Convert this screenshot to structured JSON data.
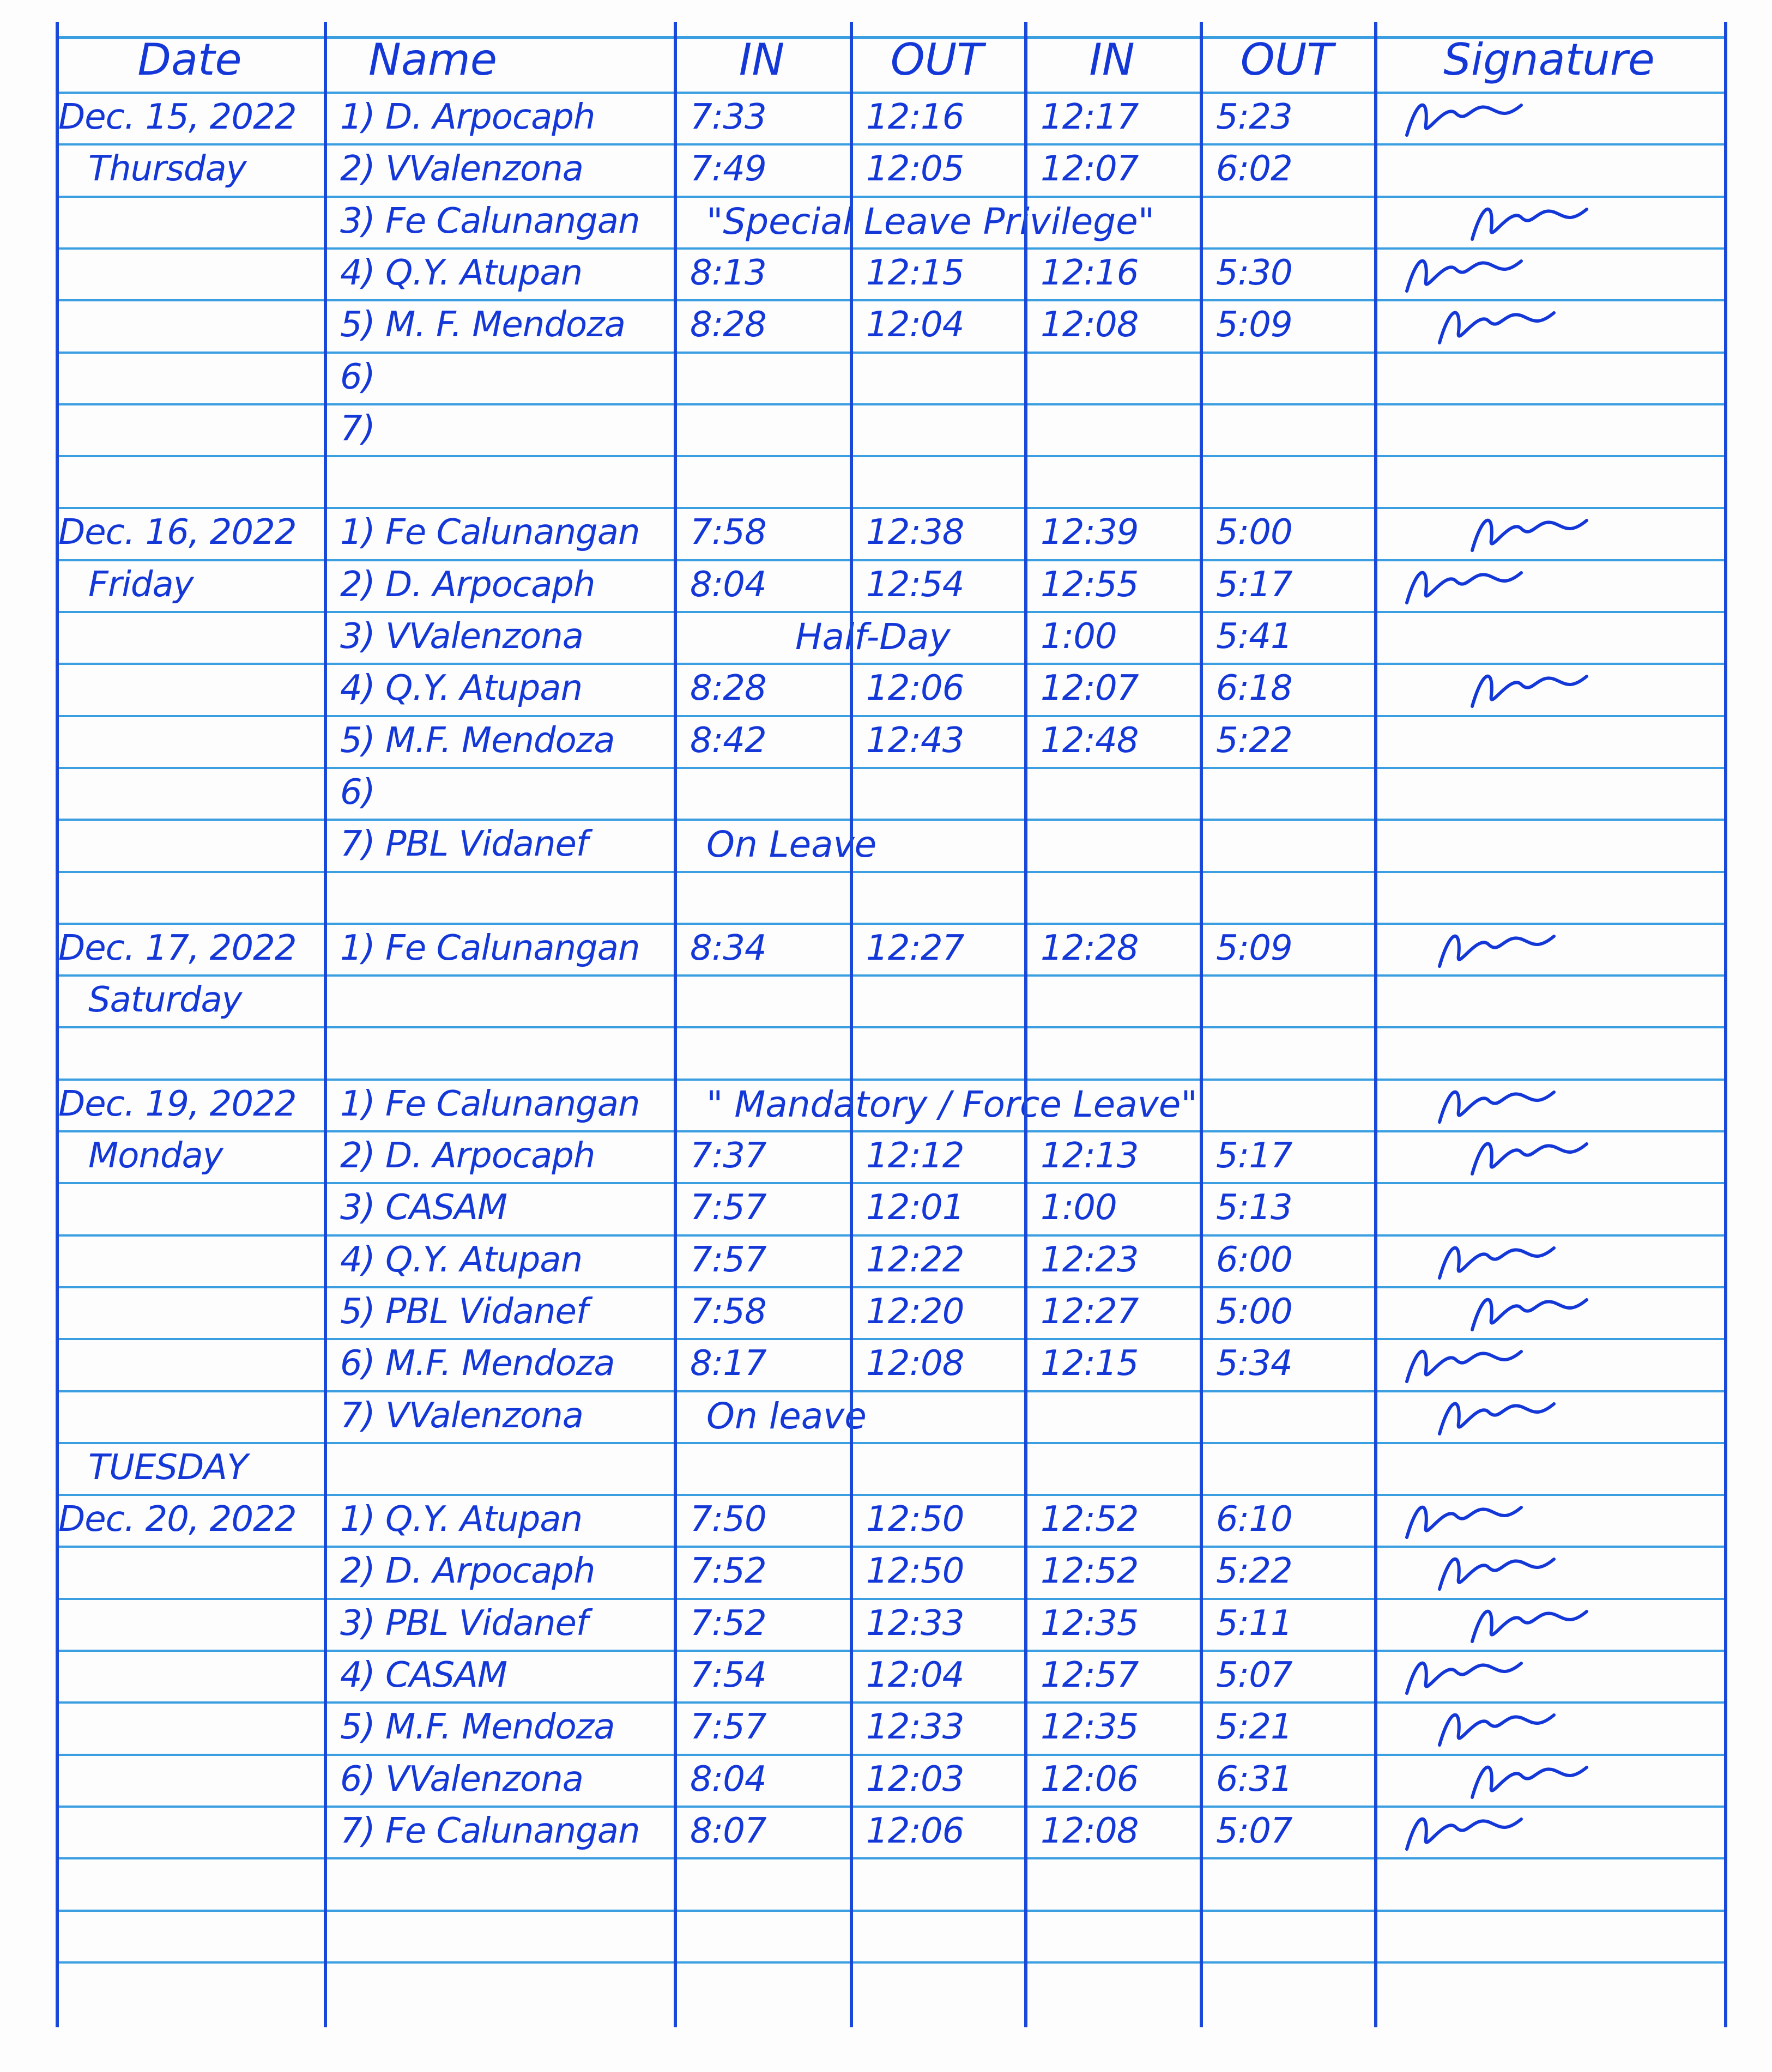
{
  "colors": {
    "ink": "#1438d8",
    "rule": "#3a9ee0"
  },
  "header": {
    "date": "Date",
    "name": "Name",
    "in1": "IN",
    "out1": "OUT",
    "in2": "IN",
    "out2": "OUT",
    "signature": "Signature"
  },
  "rows": [
    {
      "date": "Dec. 15, 2022",
      "name": "1) D. Arpocaph",
      "in1": "7:33",
      "out1": "12:16",
      "in2": "12:17",
      "out2": "5:23",
      "signed": true
    },
    {
      "date": "Thursday",
      "name": "2) VValenzona",
      "in1": "7:49",
      "out1": "12:05",
      "in2": "12:07",
      "out2": "6:02"
    },
    {
      "name": "3) Fe Calunangan",
      "remark": "\"Special Leave Privilege\"",
      "signed": true
    },
    {
      "name": "4) Q.Y. Atupan",
      "in1": "8:13",
      "out1": "12:15",
      "in2": "12:16",
      "out2": "5:30",
      "signed": true
    },
    {
      "name": "5) M. F. Mendoza",
      "in1": "8:28",
      "out1": "12:04",
      "in2": "12:08",
      "out2": "5:09",
      "signed": true
    },
    {
      "name": "6)"
    },
    {
      "name": "7)"
    },
    {},
    {
      "date": "Dec. 16, 2022",
      "name": "1) Fe Calunangan",
      "in1": "7:58",
      "out1": "12:38",
      "in2": "12:39",
      "out2": "5:00",
      "signed": true
    },
    {
      "date": "Friday",
      "name": "2) D. Arpocaph",
      "in1": "8:04",
      "out1": "12:54",
      "in2": "12:55",
      "out2": "5:17",
      "signed": true
    },
    {
      "name": "3) VValenzona",
      "remark": "Half-Day",
      "in2": "1:00",
      "out2": "5:41"
    },
    {
      "name": "4) Q.Y. Atupan",
      "in1": "8:28",
      "out1": "12:06",
      "in2": "12:07",
      "out2": "6:18",
      "signed": true
    },
    {
      "name": "5) M.F. Mendoza",
      "in1": "8:42",
      "out1": "12:43",
      "in2": "12:48",
      "out2": "5:22"
    },
    {
      "name": "6)"
    },
    {
      "name": "7) PBL Vidanef",
      "remark": "On Leave"
    },
    {},
    {
      "date": "Dec. 17, 2022",
      "name": "1) Fe Calunangan",
      "in1": "8:34",
      "out1": "12:27",
      "in2": "12:28",
      "out2": "5:09",
      "signed": true
    },
    {
      "date": "Saturday"
    },
    {},
    {
      "date": "Dec. 19, 2022",
      "name": "1) Fe Calunangan",
      "remark": "\" Mandatory / Force Leave\"",
      "signed": true
    },
    {
      "date": "Monday",
      "name": "2) D. Arpocaph",
      "in1": "7:37",
      "out1": "12:12",
      "in2": "12:13",
      "out2": "5:17",
      "signed": true
    },
    {
      "name": "3) CASAM",
      "in1": "7:57",
      "out1": "12:01",
      "in2": "1:00",
      "out2": "5:13"
    },
    {
      "name": "4) Q.Y. Atupan",
      "in1": "7:57",
      "out1": "12:22",
      "in2": "12:23",
      "out2": "6:00",
      "signed": true
    },
    {
      "name": "5) PBL Vidanef",
      "in1": "7:58",
      "out1": "12:20",
      "in2": "12:27",
      "out2": "5:00",
      "signed": true
    },
    {
      "name": "6) M.F. Mendoza",
      "in1": "8:17",
      "out1": "12:08",
      "in2": "12:15",
      "out2": "5:34",
      "signed": true
    },
    {
      "name": "7) VValenzona",
      "remark": "On leave",
      "signed": true
    },
    {
      "date": "TUESDAY"
    },
    {
      "date": "Dec. 20, 2022",
      "name": "1) Q.Y. Atupan",
      "in1": "7:50",
      "out1": "12:50",
      "in2": "12:52",
      "out2": "6:10",
      "signed": true
    },
    {
      "name": "2) D. Arpocaph",
      "in1": "7:52",
      "out1": "12:50",
      "in2": "12:52",
      "out2": "5:22",
      "signed": true
    },
    {
      "name": "3) PBL Vidanef",
      "in1": "7:52",
      "out1": "12:33",
      "in2": "12:35",
      "out2": "5:11",
      "signed": true
    },
    {
      "name": "4) CASAM",
      "in1": "7:54",
      "out1": "12:04",
      "in2": "12:57",
      "out2": "5:07",
      "signed": true
    },
    {
      "name": "5) M.F. Mendoza",
      "in1": "7:57",
      "out1": "12:33",
      "in2": "12:35",
      "out2": "5:21",
      "signed": true
    },
    {
      "name": "6) VValenzona",
      "in1": "8:04",
      "out1": "12:03",
      "in2": "12:06",
      "out2": "6:31",
      "signed": true
    },
    {
      "name": "7) Fe Calunangan",
      "in1": "8:07",
      "out1": "12:06",
      "in2": "12:08",
      "out2": "5:07",
      "signed": true
    },
    {},
    {}
  ]
}
